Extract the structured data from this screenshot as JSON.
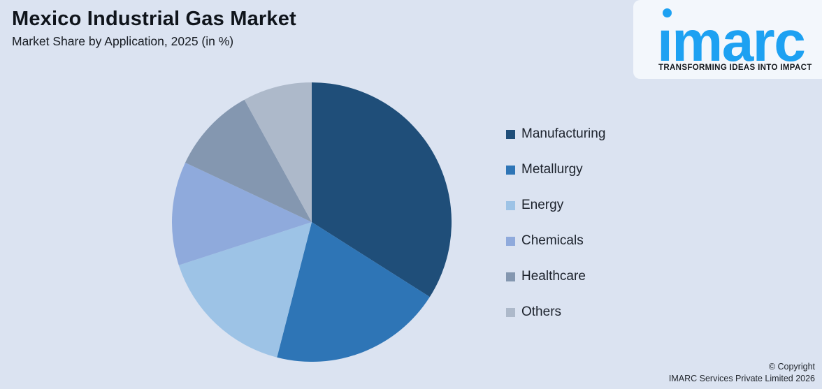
{
  "header": {
    "title": "Mexico Industrial Gas Market",
    "subtitle": "Market Share by Application, 2025 (in %)"
  },
  "logo": {
    "brand": "imarc",
    "tagline": "TRANSFORMING IDEAS INTO IMPACT",
    "brand_color": "#1da1f2"
  },
  "footer": {
    "copyright_line1": "© Copyright",
    "copyright_line2": "IMARC Services Private Limited 2026"
  },
  "chart_data": {
    "type": "pie",
    "title": "Mexico Industrial Gas Market",
    "subtitle": "Market Share by Application, 2025 (in %)",
    "unit": "%",
    "start_angle_deg": 0,
    "direction": "clockwise",
    "legend_position": "right",
    "background_color": "#dbe3f1",
    "series": [
      {
        "label": "Manufacturing",
        "value": 34,
        "color": "#1F4E79"
      },
      {
        "label": "Metallurgy",
        "value": 20,
        "color": "#2E75B6"
      },
      {
        "label": "Energy",
        "value": 16,
        "color": "#9DC3E6"
      },
      {
        "label": "Chemicals",
        "value": 12,
        "color": "#8FAADC"
      },
      {
        "label": "Healthcare",
        "value": 10,
        "color": "#8497B0"
      },
      {
        "label": "Others",
        "value": 8,
        "color": "#ADB9CA"
      }
    ]
  }
}
